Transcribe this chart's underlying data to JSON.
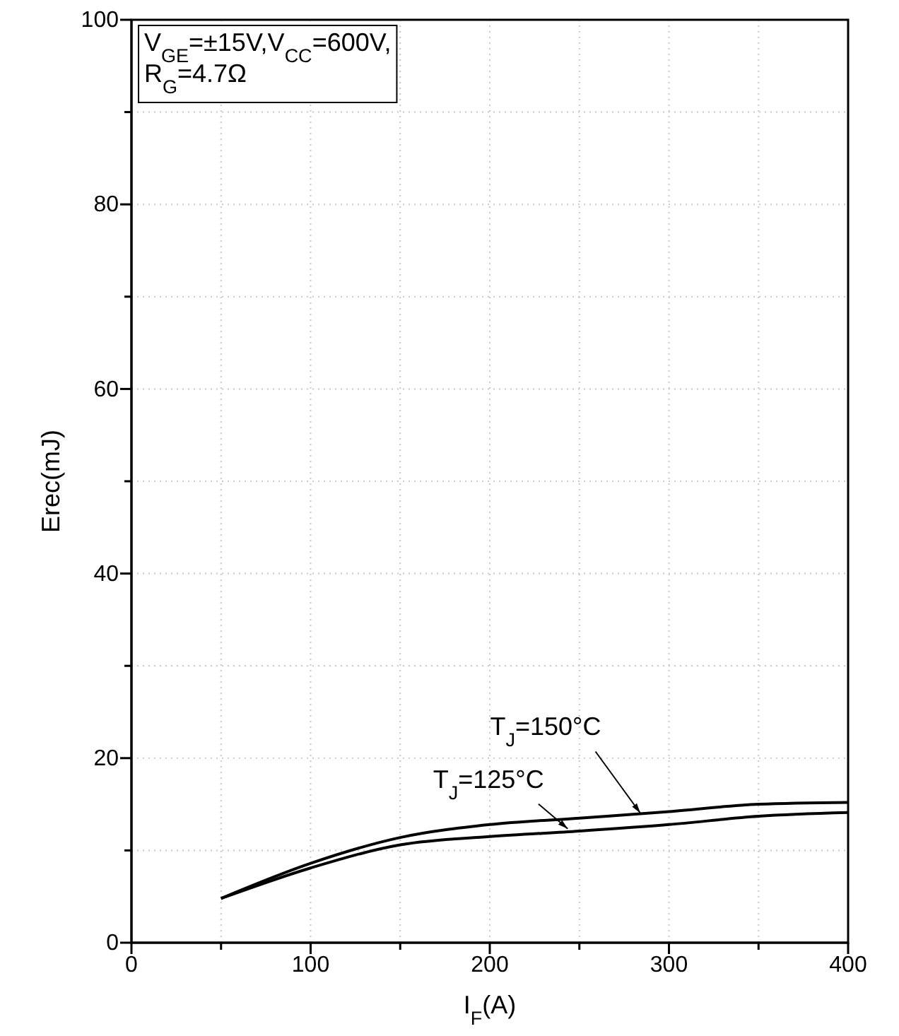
{
  "chart_data": {
    "type": "line",
    "xlabel": "I$_{F}$(A)",
    "ylabel": "Erec(mJ)",
    "xlim": [
      0,
      400
    ],
    "ylim": [
      0,
      100
    ],
    "xticks": [
      0,
      {
        "value": 50,
        "label": null
      },
      100,
      {
        "value": 150,
        "label": null
      },
      200,
      {
        "value": 250,
        "label": null
      },
      300,
      {
        "value": 350,
        "label": null
      },
      400
    ],
    "yticks": [
      0,
      {
        "value": 10,
        "label": null
      },
      20,
      {
        "value": 30,
        "label": null
      },
      40,
      {
        "value": 50,
        "label": null
      },
      60,
      {
        "value": 70,
        "label": null
      },
      80,
      {
        "value": 90,
        "label": null
      },
      100
    ],
    "grid": true,
    "marker": "none",
    "line_style": "solid",
    "x": [
      50,
      100,
      150,
      200,
      250,
      300,
      350,
      400
    ],
    "series": [
      {
        "color": "#000000",
        "values": [
          4.8,
          8.6,
          11.4,
          12.8,
          13.5,
          14.2,
          15.0,
          15.2
        ]
      },
      {
        "color": "#000000",
        "values": [
          4.8,
          8.1,
          10.6,
          11.5,
          12.1,
          12.8,
          13.7,
          14.1
        ]
      }
    ],
    "annotations": [
      "V$_{GE}$=±15V,V$_{CC}$=600V,\nR$_{G}$=4.7Ω",
      {
        "text": "T$_{J}$=150°C",
        "x": 284,
        "y": 13.9
      },
      {
        "text": "T$_{J}$=125°C",
        "x": 243.5,
        "y": 12.2
      }
    ]
  }
}
